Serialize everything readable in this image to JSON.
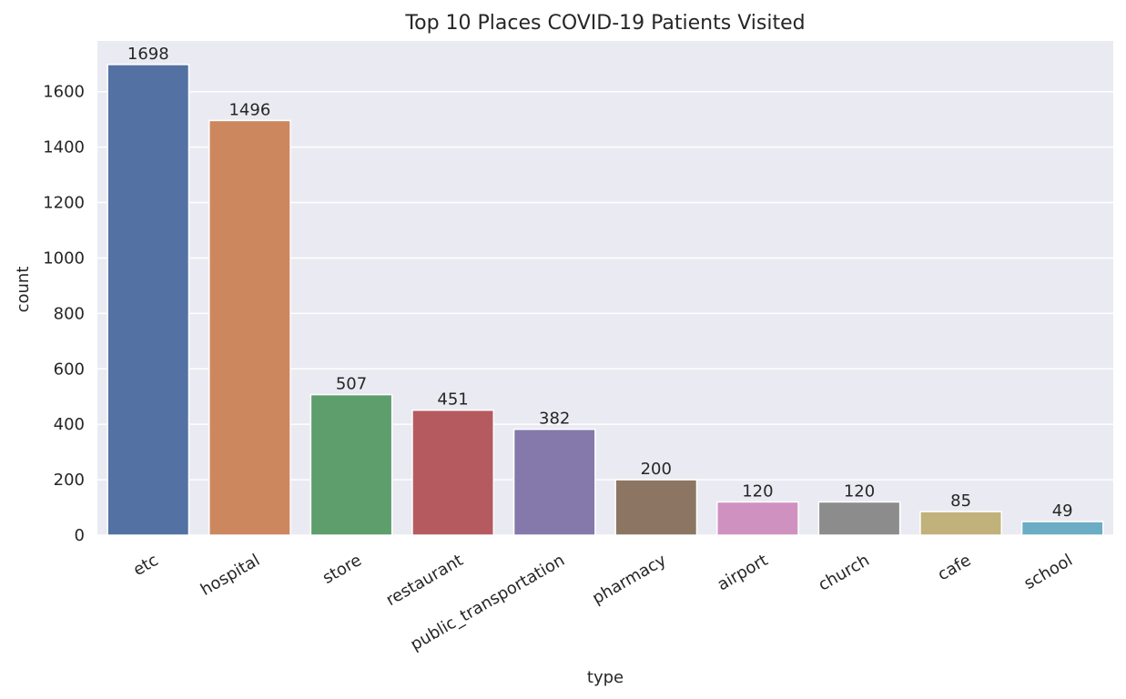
{
  "chart_data": {
    "type": "bar",
    "title": "Top 10 Places COVID-19 Patients Visited",
    "xlabel": "type",
    "ylabel": "count",
    "categories": [
      "etc",
      "hospital",
      "store",
      "restaurant",
      "public_transportation",
      "pharmacy",
      "airport",
      "church",
      "cafe",
      "school"
    ],
    "values": [
      1698,
      1496,
      507,
      451,
      382,
      200,
      120,
      120,
      85,
      49
    ],
    "data_labels": [
      "1698",
      "1496",
      "507",
      "451",
      "382",
      "200",
      "120",
      "120",
      "85",
      "49"
    ],
    "yticks": [
      0,
      200,
      400,
      600,
      800,
      1000,
      1200,
      1400,
      1600
    ],
    "ylim": [
      0,
      1783
    ],
    "grid": true,
    "legend": "none",
    "colors": {
      "background": "#eaeaf2",
      "gridline": "#ffffff",
      "bars": [
        "#5471a4",
        "#cd875f",
        "#5d9e6c",
        "#b55b5f",
        "#8579ab",
        "#8c7663",
        "#cf92c0",
        "#8c8c8c",
        "#c1b27b",
        "#6cacc5"
      ]
    }
  }
}
